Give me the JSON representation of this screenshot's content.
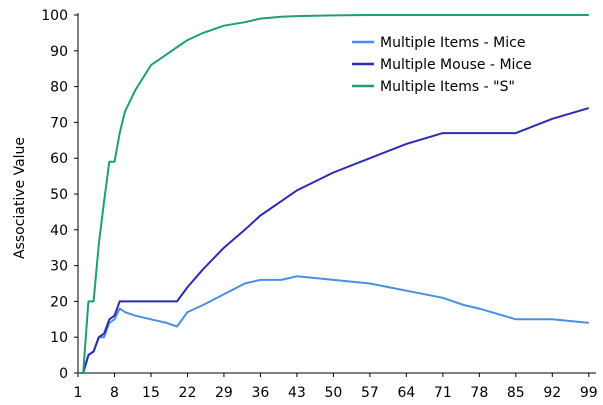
{
  "chart_data": {
    "type": "line",
    "title": "",
    "xlabel": "",
    "ylabel": "Associative Value",
    "xlim": [
      1,
      100
    ],
    "ylim": [
      0,
      100
    ],
    "x_ticks": [
      1,
      8,
      15,
      22,
      29,
      36,
      43,
      50,
      57,
      64,
      71,
      78,
      85,
      92,
      99
    ],
    "y_ticks": [
      0,
      10,
      20,
      30,
      40,
      50,
      60,
      70,
      80,
      90,
      100
    ],
    "grid": false,
    "legend_position": "top-right",
    "x": [
      1,
      2,
      3,
      4,
      5,
      6,
      7,
      8,
      9,
      10,
      12,
      15,
      18,
      20,
      22,
      25,
      29,
      33,
      36,
      40,
      43,
      50,
      57,
      64,
      71,
      75,
      78,
      85,
      92,
      99
    ],
    "series": [
      {
        "name": "Multiple Items - Mice",
        "color": "#4a90e2",
        "values": [
          0,
          0,
          5,
          6,
          10,
          10,
          14,
          15,
          18,
          17,
          16,
          15,
          14,
          13,
          17,
          19,
          22,
          25,
          26,
          26,
          27,
          26,
          25,
          23,
          21,
          19,
          18,
          15,
          15,
          14
        ]
      },
      {
        "name": "Multiple Mouse - Mice",
        "color": "#2b2bb5",
        "values": [
          0,
          0,
          5,
          6,
          10,
          11,
          15,
          16,
          20,
          20,
          20,
          20,
          20,
          20,
          24,
          29,
          35,
          40,
          44,
          48,
          51,
          56,
          60,
          64,
          67,
          67,
          67,
          67,
          71,
          74
        ]
      },
      {
        "name": "Multiple Items - \"S\"",
        "color": "#1f9e76",
        "values": [
          0,
          0,
          20,
          20,
          36,
          48,
          59,
          59,
          67,
          73,
          79,
          86,
          89,
          91,
          93,
          95,
          97,
          98,
          99,
          99.5,
          99.7,
          99.9,
          100,
          100,
          100,
          100,
          100,
          100,
          100,
          100
        ]
      }
    ]
  }
}
